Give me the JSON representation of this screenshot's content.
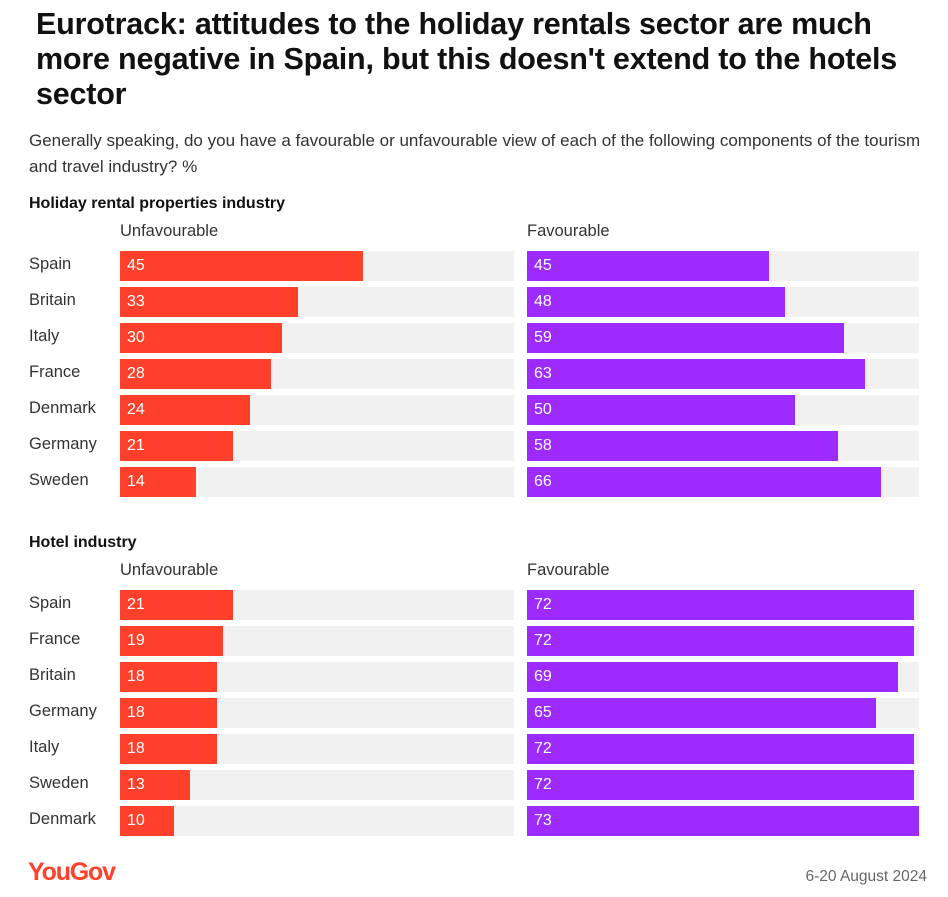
{
  "title": "Eurotrack: attitudes to the holiday rentals sector are much more negative in Spain, but this doesn't extend to the hotels sector",
  "subtitle": "Generally speaking, do you have a favourable or unfavourable view of each of the following components of the tourism and travel industry? %",
  "footer": {
    "logo": "YouGov",
    "date": "6-20 August 2024"
  },
  "colors": {
    "unfavourable": "#ff412c",
    "favourable": "#9d2aff",
    "track": "#f1f1f1"
  },
  "chart_data": [
    {
      "type": "bar",
      "title": "Holiday rental properties industry",
      "categories": [
        "Spain",
        "Britain",
        "Italy",
        "France",
        "Denmark",
        "Germany",
        "Sweden"
      ],
      "series": [
        {
          "name": "Unfavourable",
          "values": [
            45,
            33,
            30,
            28,
            24,
            21,
            14
          ]
        },
        {
          "name": "Favourable",
          "values": [
            45,
            48,
            59,
            63,
            50,
            58,
            66
          ]
        }
      ],
      "xlim": [
        0,
        73
      ]
    },
    {
      "type": "bar",
      "title": "Hotel industry",
      "categories": [
        "Spain",
        "France",
        "Britain",
        "Germany",
        "Italy",
        "Sweden",
        "Denmark"
      ],
      "series": [
        {
          "name": "Unfavourable",
          "values": [
            21,
            19,
            18,
            18,
            18,
            13,
            10
          ]
        },
        {
          "name": "Favourable",
          "values": [
            72,
            72,
            69,
            65,
            72,
            72,
            73
          ]
        }
      ],
      "xlim": [
        0,
        73
      ]
    }
  ]
}
